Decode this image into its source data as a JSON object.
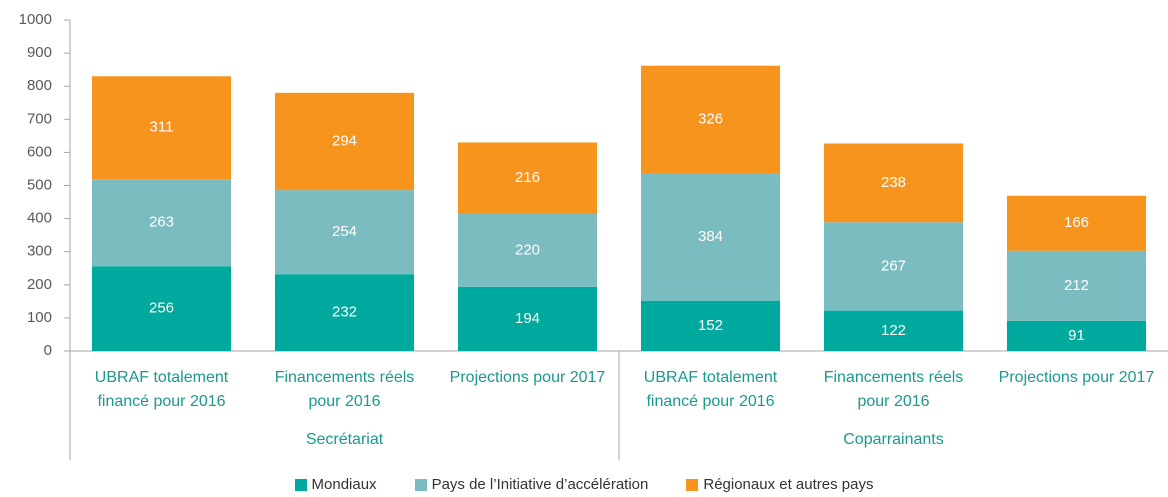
{
  "chart_data": {
    "type": "bar",
    "stacked": true,
    "groups": [
      {
        "name": "Secrétariat",
        "categories": [
          "UBRAF totalement financé pour 2016",
          "Financements réels pour 2016",
          "Projections pour 2017"
        ]
      },
      {
        "name": "Coparrainants",
        "categories": [
          "UBRAF totalement financé pour 2016",
          "Financements réels pour 2016",
          "Projections pour 2017"
        ]
      }
    ],
    "series": [
      {
        "name": "Mondiaux",
        "color": "#00a99d",
        "values": [
          256,
          232,
          194,
          152,
          122,
          91
        ]
      },
      {
        "name": "Pays de l’Initiative d’accélération",
        "color": "#7bbcc0",
        "values": [
          263,
          254,
          220,
          384,
          267,
          212
        ]
      },
      {
        "name": "Régionaux et autres pays",
        "color": "#f7941d",
        "values": [
          311,
          294,
          216,
          326,
          238,
          166
        ]
      }
    ],
    "ylim": [
      0,
      1000
    ],
    "yticks": [
      0,
      100,
      200,
      300,
      400,
      500,
      600,
      700,
      800,
      900,
      1000
    ],
    "grid": false,
    "legend": "bottom"
  }
}
